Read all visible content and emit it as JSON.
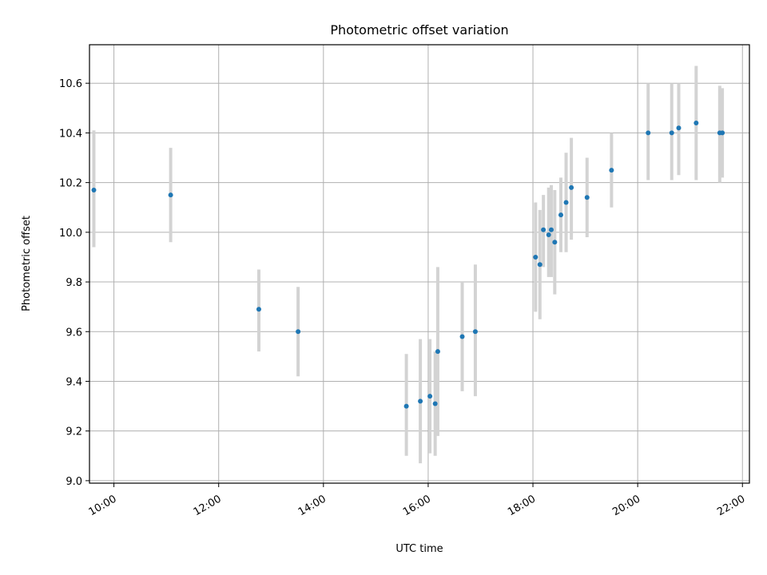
{
  "chart_data": {
    "type": "scatter",
    "title": "Photometric offset variation",
    "xlabel": "UTC time",
    "ylabel": "Photometric offset",
    "x_unit": "hours UTC",
    "xlim": [
      "09:32",
      "22:08"
    ],
    "ylim": [
      8.99,
      10.755
    ],
    "x_ticks": [
      "10:00",
      "12:00",
      "14:00",
      "16:00",
      "18:00",
      "20:00",
      "22:00"
    ],
    "y_ticks": [
      "9.0",
      "9.2",
      "9.4",
      "9.6",
      "9.8",
      "10.0",
      "10.2",
      "10.4",
      "10.6"
    ],
    "grid": true,
    "legend": "none",
    "point_color": "#1f77b4",
    "error_color": "#d3d3d3",
    "series": [
      {
        "points": [
          {
            "x": "09:37",
            "y": 10.17,
            "y_low": 9.94,
            "y_high": 10.41
          },
          {
            "x": "11:05",
            "y": 10.15,
            "y_low": 9.96,
            "y_high": 10.34
          },
          {
            "x": "12:46",
            "y": 9.69,
            "y_low": 9.52,
            "y_high": 9.85
          },
          {
            "x": "13:31",
            "y": 9.6,
            "y_low": 9.42,
            "y_high": 9.78
          },
          {
            "x": "15:35",
            "y": 9.3,
            "y_low": 9.1,
            "y_high": 9.51
          },
          {
            "x": "15:51",
            "y": 9.32,
            "y_low": 9.07,
            "y_high": 9.57
          },
          {
            "x": "16:02",
            "y": 9.34,
            "y_low": 9.11,
            "y_high": 9.57
          },
          {
            "x": "16:08",
            "y": 9.31,
            "y_low": 9.1,
            "y_high": 9.52
          },
          {
            "x": "16:11",
            "y": 9.52,
            "y_low": 9.18,
            "y_high": 9.86
          },
          {
            "x": "16:39",
            "y": 9.58,
            "y_low": 9.36,
            "y_high": 9.8
          },
          {
            "x": "16:54",
            "y": 9.6,
            "y_low": 9.34,
            "y_high": 9.87
          },
          {
            "x": "18:03",
            "y": 9.9,
            "y_low": 9.68,
            "y_high": 10.12
          },
          {
            "x": "18:08",
            "y": 9.87,
            "y_low": 9.65,
            "y_high": 10.09
          },
          {
            "x": "18:12",
            "y": 10.01,
            "y_low": 9.86,
            "y_high": 10.15
          },
          {
            "x": "18:18",
            "y": 9.99,
            "y_low": 9.82,
            "y_high": 10.18
          },
          {
            "x": "18:21",
            "y": 10.01,
            "y_low": 9.82,
            "y_high": 10.19
          },
          {
            "x": "18:25",
            "y": 9.96,
            "y_low": 9.75,
            "y_high": 10.17
          },
          {
            "x": "18:32",
            "y": 10.07,
            "y_low": 9.92,
            "y_high": 10.22
          },
          {
            "x": "18:38",
            "y": 10.12,
            "y_low": 9.92,
            "y_high": 10.32
          },
          {
            "x": "18:44",
            "y": 10.18,
            "y_low": 9.97,
            "y_high": 10.38
          },
          {
            "x": "19:02",
            "y": 10.14,
            "y_low": 9.98,
            "y_high": 10.3
          },
          {
            "x": "19:30",
            "y": 10.25,
            "y_low": 10.1,
            "y_high": 10.4
          },
          {
            "x": "20:12",
            "y": 10.4,
            "y_low": 10.21,
            "y_high": 10.6
          },
          {
            "x": "20:39",
            "y": 10.4,
            "y_low": 10.21,
            "y_high": 10.6
          },
          {
            "x": "20:47",
            "y": 10.42,
            "y_low": 10.23,
            "y_high": 10.6
          },
          {
            "x": "21:07",
            "y": 10.44,
            "y_low": 10.21,
            "y_high": 10.67
          },
          {
            "x": "21:34",
            "y": 10.4,
            "y_low": 10.2,
            "y_high": 10.59
          },
          {
            "x": "21:37",
            "y": 10.4,
            "y_low": 10.22,
            "y_high": 10.58
          }
        ]
      }
    ]
  }
}
